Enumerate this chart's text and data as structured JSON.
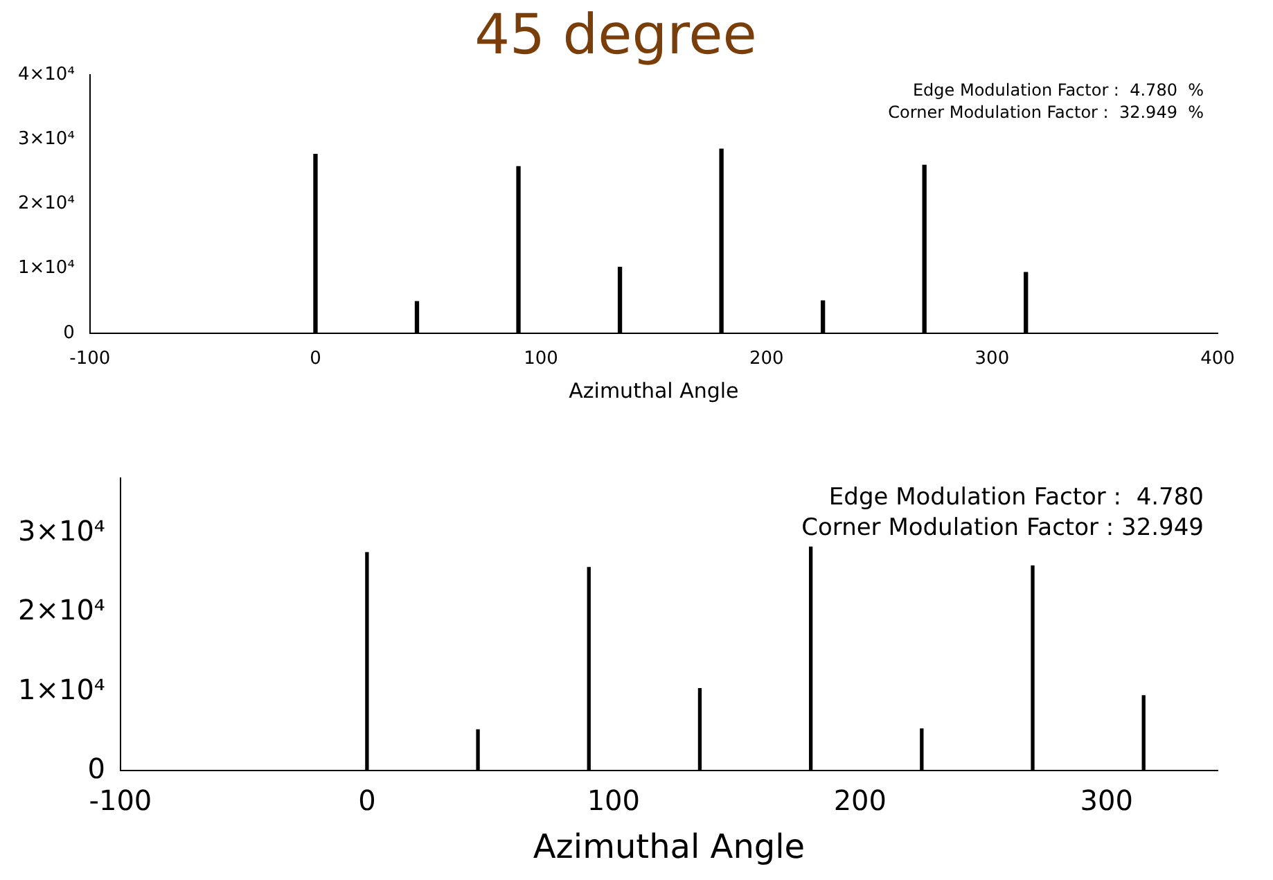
{
  "chart_data": [
    {
      "type": "bar",
      "title": "45 degree",
      "xlabel": "Azimuthal Angle",
      "annotations": [
        "Edge Modulation Factor :  4.780  %",
        "Corner Modulation Factor :  32.949  %"
      ],
      "x": [
        0,
        45,
        90,
        135,
        180,
        225,
        270,
        315
      ],
      "series": [
        {
          "color": "#000000",
          "values": [
            27700,
            4900,
            25800,
            10200,
            28500,
            5000,
            26000,
            9400
          ]
        }
      ],
      "xlim": [
        -100,
        400
      ],
      "xticks": [
        -100,
        0,
        100,
        200,
        300,
        400
      ],
      "ylim": [
        0,
        40000
      ],
      "yticks": [
        {
          "value": 0,
          "label": "0"
        },
        {
          "value": 10000,
          "label": "1×10⁴"
        },
        {
          "value": 20000,
          "label": "2×10⁴"
        },
        {
          "value": 30000,
          "label": "3×10⁴"
        },
        {
          "value": 40000,
          "label": "4×10⁴"
        }
      ],
      "grid": false,
      "legend": false
    },
    {
      "type": "bar",
      "xlabel": "Azimuthal Angle",
      "annotations": [
        "Edge Modulation Factor :  4.780",
        "Corner Modulation Factor : 32.949"
      ],
      "x": [
        0,
        45,
        90,
        135,
        180,
        225,
        270,
        315
      ],
      "series": [
        {
          "color": "#000000",
          "values": [
            27600,
            5200,
            25700,
            10400,
            28300,
            5300,
            25900,
            9500
          ]
        }
      ],
      "xlim": [
        -100,
        345
      ],
      "xticks": [
        -100,
        0,
        100,
        200,
        300
      ],
      "ylim": [
        0,
        37000
      ],
      "yticks": [
        {
          "value": 0,
          "label": "0"
        },
        {
          "value": 10000,
          "label": "1×10⁴"
        },
        {
          "value": 20000,
          "label": "2×10⁴"
        },
        {
          "value": 30000,
          "label": "3×10⁴"
        }
      ],
      "grid": false,
      "legend": false
    }
  ]
}
